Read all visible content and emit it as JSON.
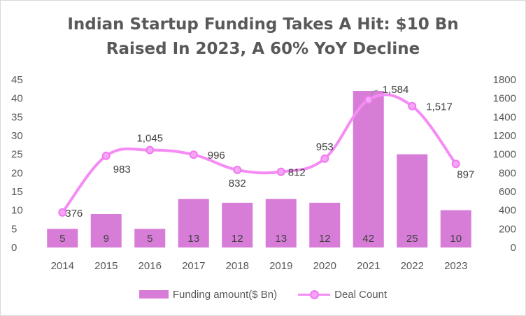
{
  "chart_data": {
    "type": "bar+line",
    "title_lines": [
      "Indian Startup Funding Takes A Hit: $10 Bn",
      "Raised In 2023, A 60% YoY Decline"
    ],
    "categories": [
      "2014",
      "2015",
      "2016",
      "2017",
      "2018",
      "2019",
      "2020",
      "2021",
      "2022",
      "2023"
    ],
    "series": [
      {
        "name": "Funding amount($ Bn)",
        "kind": "bar",
        "axis": "left",
        "values": [
          5,
          9,
          5,
          13,
          12,
          13,
          12,
          42,
          25,
          10
        ],
        "labels": [
          "5",
          "9",
          "5",
          "13",
          "12",
          "13",
          "12",
          "42",
          "25",
          "10"
        ],
        "color": "#d77dd7"
      },
      {
        "name": "Deal Count",
        "kind": "line",
        "axis": "right",
        "values": [
          376,
          983,
          1045,
          996,
          832,
          812,
          953,
          1584,
          1517,
          897
        ],
        "labels": [
          "376",
          "983",
          "1,045",
          "996",
          "832",
          "812",
          "953",
          "1,584",
          "1,517",
          "897"
        ],
        "color": "#f58cf5"
      }
    ],
    "y_left": {
      "range": [
        0,
        45
      ],
      "ticks": [
        "0",
        "5",
        "10",
        "15",
        "20",
        "25",
        "30",
        "35",
        "40",
        "45"
      ]
    },
    "y_right": {
      "range": [
        0,
        1800
      ],
      "ticks": [
        "0",
        "200",
        "400",
        "600",
        "800",
        "1000",
        "1200",
        "1400",
        "1600",
        "1800"
      ]
    },
    "grid": false,
    "legend_position": "bottom"
  }
}
